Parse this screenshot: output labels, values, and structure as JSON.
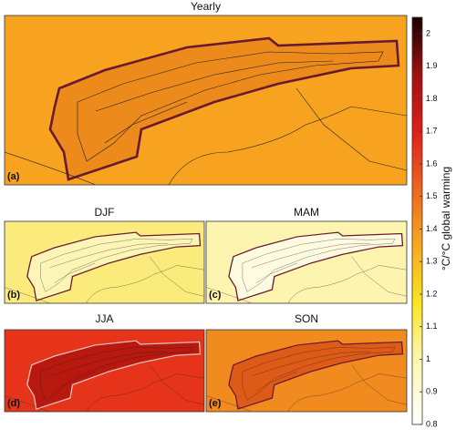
{
  "panels": [
    {
      "title": "Yearly",
      "label": "(a)"
    },
    {
      "title": "DJF",
      "label": "(b)"
    },
    {
      "title": "MAM",
      "label": "(c)"
    },
    {
      "title": "JJA",
      "label": "(d)"
    },
    {
      "title": "SON",
      "label": "(e)"
    }
  ],
  "colorbar": {
    "label": "°C/°C global warming",
    "lim": [
      0.8,
      2.05
    ],
    "ticks": [
      0.8,
      0.9,
      1,
      1.1,
      1.2,
      1.3,
      1.4,
      1.5,
      1.6,
      1.7,
      1.8,
      1.9,
      2
    ]
  }
}
